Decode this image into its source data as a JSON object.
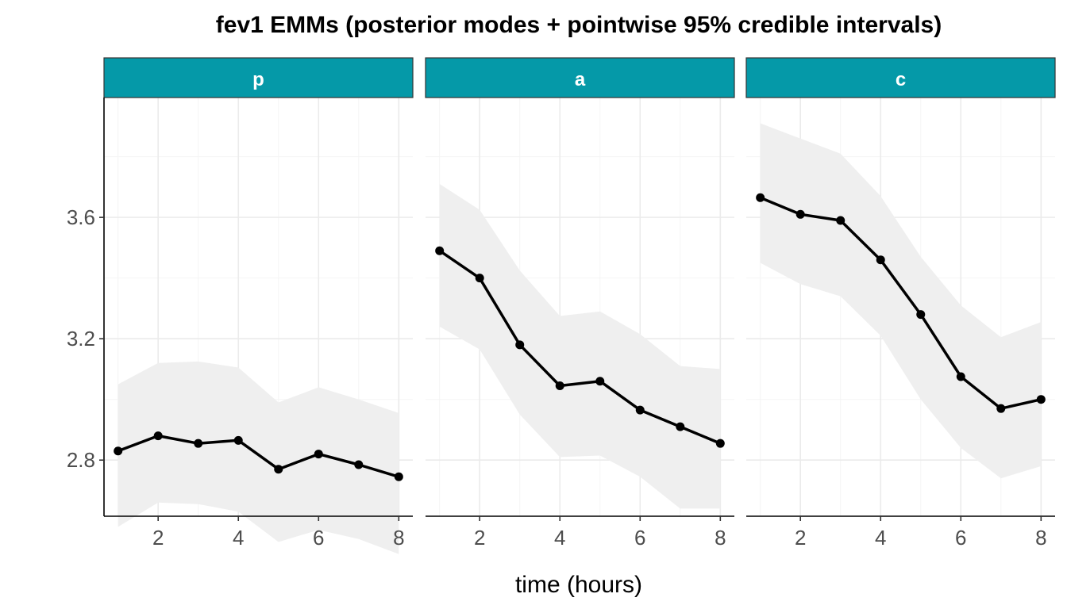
{
  "chart_data": {
    "type": "line",
    "title": "fev1 EMMs (posterior modes + pointwise 95% credible intervals)",
    "xlabel": "time (hours)",
    "ylabel": "",
    "x": [
      1,
      2,
      3,
      4,
      5,
      6,
      7,
      8
    ],
    "xlim": [
      0.65,
      8.35
    ],
    "ylim": [
      2.615,
      3.995
    ],
    "x_ticks": [
      2,
      4,
      6,
      8
    ],
    "y_ticks": [
      2.8,
      3.2,
      3.6
    ],
    "y_tick_labels": [
      "2.8",
      "3.2",
      "3.6"
    ],
    "grid": true,
    "colors": {
      "strip_fill": "#0599a8",
      "ribbon": "#efefef",
      "line": "#000000",
      "grid_major": "#ebebeb",
      "grid_minor": "#f5f5f5"
    },
    "panels": [
      {
        "facet": "p",
        "mode": [
          2.83,
          2.88,
          2.855,
          2.865,
          2.77,
          2.82,
          2.785,
          2.745
        ],
        "lower": [
          2.58,
          2.66,
          2.655,
          2.63,
          2.53,
          2.57,
          2.54,
          2.49
        ],
        "upper": [
          3.05,
          3.12,
          3.125,
          3.105,
          2.99,
          3.04,
          3.0,
          2.955
        ]
      },
      {
        "facet": "a",
        "mode": [
          3.49,
          3.4,
          3.18,
          3.045,
          3.06,
          2.965,
          2.91,
          2.855
        ],
        "lower": [
          3.24,
          3.165,
          2.95,
          2.81,
          2.815,
          2.745,
          2.64,
          2.64
        ],
        "upper": [
          3.71,
          3.625,
          3.425,
          3.275,
          3.29,
          3.215,
          3.11,
          3.1
        ]
      },
      {
        "facet": "c",
        "mode": [
          3.665,
          3.61,
          3.59,
          3.46,
          3.28,
          3.075,
          2.97,
          3.0
        ],
        "lower": [
          3.45,
          3.38,
          3.34,
          3.21,
          3.0,
          2.84,
          2.74,
          2.78
        ],
        "upper": [
          3.91,
          3.86,
          3.81,
          3.67,
          3.47,
          3.31,
          3.205,
          3.255
        ]
      }
    ]
  }
}
